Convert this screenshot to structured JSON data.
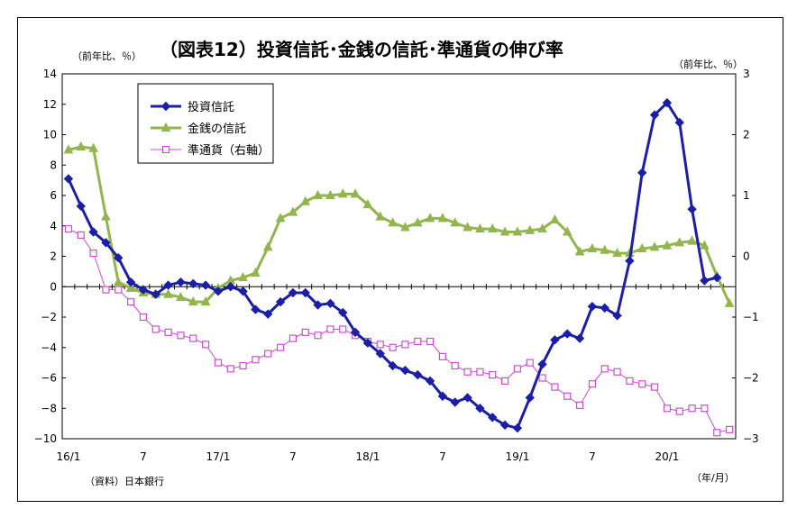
{
  "chart_data": {
    "type": "line",
    "title": "（図表12）投資信託･金銭の信託･準通貨の伸び率",
    "left_axis_unit": "（前年比、％）",
    "right_axis_unit": "（前年比、％）",
    "x_unit": "（年/月）",
    "source": "（資料）日本銀行",
    "x_tick_labels": [
      "16/1",
      "7",
      "17/1",
      "7",
      "18/1",
      "7",
      "19/1",
      "7",
      "20/1"
    ],
    "y_left": {
      "min": -10,
      "max": 14,
      "step": 2,
      "tick_labels": [
        "14",
        "12",
        "10",
        "8",
        "6",
        "4",
        "2",
        "0",
        "−2",
        "−4",
        "−6",
        "−8",
        "−10"
      ]
    },
    "y_right": {
      "min": -3,
      "max": 3,
      "step": 1,
      "tick_labels": [
        "3",
        "2",
        "1",
        "0",
        "−1",
        "−2",
        "−3"
      ]
    },
    "legend_placement": "top-left",
    "grid": false,
    "series": [
      {
        "name": "投資信託",
        "axis": "left",
        "color": "#1b1fa8",
        "marker": "diamond",
        "values": [
          7.1,
          5.3,
          3.6,
          2.9,
          1.9,
          0.3,
          -0.2,
          -0.5,
          0.1,
          0.3,
          0.2,
          0.1,
          -0.3,
          0.0,
          -0.3,
          -1.5,
          -1.8,
          -1.0,
          -0.4,
          -0.4,
          -1.2,
          -1.1,
          -1.7,
          -3.0,
          -3.7,
          -4.4,
          -5.2,
          -5.5,
          -5.8,
          -6.2,
          -7.2,
          -7.6,
          -7.3,
          -8.0,
          -8.6,
          -9.1,
          -9.3,
          -7.3,
          -5.1,
          -3.5,
          -3.1,
          -3.4,
          -1.3,
          -1.4,
          -1.9,
          1.7,
          7.5,
          11.3,
          12.1,
          10.8,
          5.1,
          0.4,
          0.6
        ]
      },
      {
        "name": "金銭の信託",
        "axis": "left",
        "color": "#92b54d",
        "marker": "triangle",
        "values": [
          9.0,
          9.2,
          9.1,
          4.6,
          0.3,
          -0.1,
          -0.4,
          -0.5,
          -0.5,
          -0.7,
          -1.0,
          -1.0,
          -0.1,
          0.4,
          0.6,
          0.9,
          2.6,
          4.5,
          4.9,
          5.6,
          6.0,
          6.0,
          6.1,
          6.1,
          5.4,
          4.6,
          4.2,
          3.9,
          4.2,
          4.5,
          4.5,
          4.2,
          3.9,
          3.8,
          3.8,
          3.6,
          3.6,
          3.7,
          3.8,
          4.4,
          3.6,
          2.3,
          2.5,
          2.4,
          2.2,
          2.2,
          2.5,
          2.6,
          2.7,
          2.9,
          3.0,
          2.7,
          0.7,
          -1.1
        ]
      },
      {
        "name": "準通貨（右軸）",
        "axis": "right",
        "color": "#d04ed0",
        "marker": "square-open",
        "values": [
          0.45,
          0.35,
          0.05,
          -0.55,
          -0.55,
          -0.75,
          -1.0,
          -1.2,
          -1.25,
          -1.3,
          -1.35,
          -1.45,
          -1.75,
          -1.85,
          -1.8,
          -1.7,
          -1.6,
          -1.5,
          -1.35,
          -1.25,
          -1.3,
          -1.2,
          -1.2,
          -1.3,
          -1.4,
          -1.45,
          -1.5,
          -1.45,
          -1.4,
          -1.4,
          -1.65,
          -1.8,
          -1.9,
          -1.9,
          -1.95,
          -2.05,
          -1.85,
          -1.75,
          -2.0,
          -2.15,
          -2.3,
          -2.45,
          -2.1,
          -1.85,
          -1.9,
          -2.05,
          -2.1,
          -2.15,
          -2.5,
          -2.55,
          -2.5,
          -2.5,
          -2.9,
          -2.85
        ]
      }
    ]
  }
}
